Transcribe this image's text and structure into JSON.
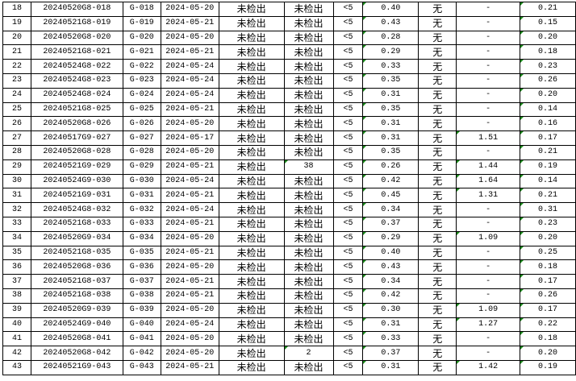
{
  "colors": {
    "grid": "#000000",
    "error_flag": "#1a8a1a"
  },
  "rows": [
    [
      "18",
      "20240520G8-018",
      "G-018",
      "2024-05-20",
      "未检出",
      "未检出",
      "<5",
      "0.40",
      "无",
      "-",
      "0.21"
    ],
    [
      "19",
      "20240521G8-019",
      "G-019",
      "2024-05-21",
      "未检出",
      "未检出",
      "<5",
      "0.43",
      "无",
      "-",
      "0.15"
    ],
    [
      "20",
      "20240520G8-020",
      "G-020",
      "2024-05-20",
      "未检出",
      "未检出",
      "<5",
      "0.28",
      "无",
      "-",
      "0.20"
    ],
    [
      "21",
      "20240521G8-021",
      "G-021",
      "2024-05-21",
      "未检出",
      "未检出",
      "<5",
      "0.29",
      "无",
      "-",
      "0.18"
    ],
    [
      "22",
      "20240524G8-022",
      "G-022",
      "2024-05-24",
      "未检出",
      "未检出",
      "<5",
      "0.33",
      "无",
      "-",
      "0.23"
    ],
    [
      "23",
      "20240524G8-023",
      "G-023",
      "2024-05-24",
      "未检出",
      "未检出",
      "<5",
      "0.35",
      "无",
      "-",
      "0.26"
    ],
    [
      "24",
      "20240524G8-024",
      "G-024",
      "2024-05-24",
      "未检出",
      "未检出",
      "<5",
      "0.31",
      "无",
      "-",
      "0.20"
    ],
    [
      "25",
      "20240521G8-025",
      "G-025",
      "2024-05-21",
      "未检出",
      "未检出",
      "<5",
      "0.35",
      "无",
      "-",
      "0.14"
    ],
    [
      "26",
      "20240520G8-026",
      "G-026",
      "2024-05-20",
      "未检出",
      "未检出",
      "<5",
      "0.31",
      "无",
      "-",
      "0.16"
    ],
    [
      "27",
      "20240517G9-027",
      "G-027",
      "2024-05-17",
      "未检出",
      "未检出",
      "<5",
      "0.31",
      "无",
      "1.51",
      "0.17"
    ],
    [
      "28",
      "20240520G8-028",
      "G-028",
      "2024-05-20",
      "未检出",
      "未检出",
      "<5",
      "0.35",
      "无",
      "-",
      "0.21"
    ],
    [
      "29",
      "20240521G9-029",
      "G-029",
      "2024-05-21",
      "未检出",
      "38",
      "<5",
      "0.26",
      "无",
      "1.44",
      "0.19"
    ],
    [
      "30",
      "20240524G9-030",
      "G-030",
      "2024-05-24",
      "未检出",
      "未检出",
      "<5",
      "0.42",
      "无",
      "1.64",
      "0.14"
    ],
    [
      "31",
      "20240521G9-031",
      "G-031",
      "2024-05-21",
      "未检出",
      "未检出",
      "<5",
      "0.45",
      "无",
      "1.31",
      "0.21"
    ],
    [
      "32",
      "20240524G8-032",
      "G-032",
      "2024-05-24",
      "未检出",
      "未检出",
      "<5",
      "0.34",
      "无",
      "-",
      "0.31"
    ],
    [
      "33",
      "20240521G8-033",
      "G-033",
      "2024-05-21",
      "未检出",
      "未检出",
      "<5",
      "0.37",
      "无",
      "-",
      "0.23"
    ],
    [
      "34",
      "20240520G9-034",
      "G-034",
      "2024-05-20",
      "未检出",
      "未检出",
      "<5",
      "0.29",
      "无",
      "1.09",
      "0.20"
    ],
    [
      "35",
      "20240521G8-035",
      "G-035",
      "2024-05-21",
      "未检出",
      "未检出",
      "<5",
      "0.40",
      "无",
      "-",
      "0.25"
    ],
    [
      "36",
      "20240520G8-036",
      "G-036",
      "2024-05-20",
      "未检出",
      "未检出",
      "<5",
      "0.43",
      "无",
      "-",
      "0.18"
    ],
    [
      "37",
      "20240521G8-037",
      "G-037",
      "2024-05-21",
      "未检出",
      "未检出",
      "<5",
      "0.34",
      "无",
      "-",
      "0.17"
    ],
    [
      "38",
      "20240521G8-038",
      "G-038",
      "2024-05-21",
      "未检出",
      "未检出",
      "<5",
      "0.42",
      "无",
      "-",
      "0.26"
    ],
    [
      "39",
      "20240520G9-039",
      "G-039",
      "2024-05-20",
      "未检出",
      "未检出",
      "<5",
      "0.30",
      "无",
      "1.09",
      "0.17"
    ],
    [
      "40",
      "20240524G9-040",
      "G-040",
      "2024-05-24",
      "未检出",
      "未检出",
      "<5",
      "0.31",
      "无",
      "1.27",
      "0.22"
    ],
    [
      "41",
      "20240520G8-041",
      "G-041",
      "2024-05-20",
      "未检出",
      "未检出",
      "<5",
      "0.33",
      "无",
      "-",
      "0.18"
    ],
    [
      "42",
      "20240520G8-042",
      "G-042",
      "2024-05-20",
      "未检出",
      "2",
      "<5",
      "0.37",
      "无",
      "-",
      "0.20"
    ],
    [
      "43",
      "20240521G9-043",
      "G-043",
      "2024-05-21",
      "未检出",
      "未检出",
      "<5",
      "0.31",
      "无",
      "1.42",
      "0.19"
    ]
  ]
}
